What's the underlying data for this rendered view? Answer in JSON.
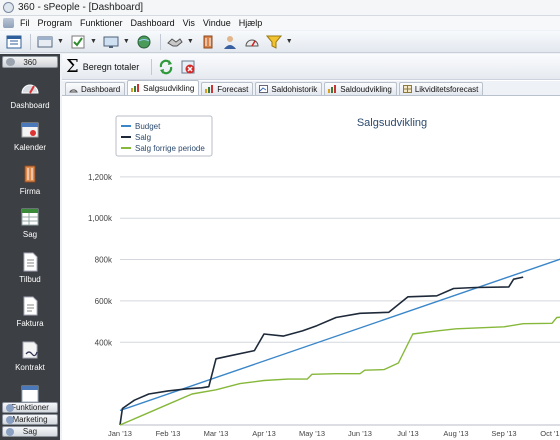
{
  "window": {
    "title": "360 - sPeople - [Dashboard]"
  },
  "menu": {
    "items": [
      "Fil",
      "Program",
      "Funktioner",
      "Dashboard",
      "Vis",
      "Vindue",
      "Hjælp"
    ]
  },
  "toolbar": {
    "icons": [
      "calendar-icon",
      "window-icon",
      "checklist-icon",
      "screen-icon",
      "globe-icon",
      "handshake-icon",
      "building-icon",
      "person-icon",
      "gauge-icon",
      "funnel-icon"
    ]
  },
  "sidebar": {
    "header": "360",
    "items": [
      {
        "label": "Dashboard",
        "icon": "dashboard-icon"
      },
      {
        "label": "Kalender",
        "icon": "calendar-icon"
      },
      {
        "label": "Firma",
        "icon": "building-icon"
      },
      {
        "label": "Sag",
        "icon": "folder-table-icon"
      },
      {
        "label": "Tilbud",
        "icon": "document-icon"
      },
      {
        "label": "Faktura",
        "icon": "invoice-icon"
      },
      {
        "label": "Kontrakt",
        "icon": "contract-icon"
      }
    ],
    "bottom": [
      "Funktioner",
      "Marketing",
      "Sag"
    ]
  },
  "subtoolbar": {
    "total_label": "Beregn totaler"
  },
  "tabs": [
    {
      "label": "Dashboard",
      "active": false
    },
    {
      "label": "Salgsudvikling",
      "active": true
    },
    {
      "label": "Forecast",
      "active": false
    },
    {
      "label": "Saldohistorik",
      "active": false
    },
    {
      "label": "Saldoudvikling",
      "active": false
    },
    {
      "label": "Likviditetsforecast",
      "active": false
    }
  ],
  "chart_data": {
    "type": "line",
    "title": "Salgsudvikling",
    "xlabel": "",
    "ylabel": "",
    "x_ticks": [
      "Jan '13",
      "Feb '13",
      "Mar '13",
      "Apr '13",
      "May '13",
      "Jun '13",
      "Jul '13",
      "Aug '13",
      "Sep '13",
      "Oct '13"
    ],
    "y_ticks": [
      "400k",
      "600k",
      "800k",
      "1,000k",
      "1,200k"
    ],
    "ylim": [
      0,
      1250000
    ],
    "xlim": [
      0,
      9.4
    ],
    "grid": true,
    "legend_position": "top-left",
    "series": [
      {
        "name": "Budget",
        "color": "#3a86c8",
        "points": [
          [
            0,
            70000
          ],
          [
            9.4,
            820000
          ]
        ]
      },
      {
        "name": "Salg",
        "color": "#1e2a3a",
        "points": [
          [
            0,
            0
          ],
          [
            0.05,
            80000
          ],
          [
            0.3,
            120000
          ],
          [
            0.6,
            150000
          ],
          [
            1.0,
            165000
          ],
          [
            1.4,
            175000
          ],
          [
            1.7,
            180000
          ],
          [
            1.85,
            185000
          ],
          [
            2.0,
            320000
          ],
          [
            2.3,
            335000
          ],
          [
            2.8,
            360000
          ],
          [
            3.0,
            440000
          ],
          [
            3.4,
            430000
          ],
          [
            3.8,
            455000
          ],
          [
            4.1,
            480000
          ],
          [
            4.5,
            520000
          ],
          [
            5.0,
            540000
          ],
          [
            5.6,
            545000
          ],
          [
            6.0,
            620000
          ],
          [
            6.6,
            625000
          ],
          [
            6.95,
            660000
          ],
          [
            7.4,
            665000
          ],
          [
            8.1,
            668000
          ],
          [
            8.2,
            705000
          ],
          [
            8.4,
            715000
          ]
        ]
      },
      {
        "name": "Salg forrige periode",
        "color": "#86b83a",
        "points": [
          [
            0,
            0
          ],
          [
            0.5,
            50000
          ],
          [
            1.0,
            100000
          ],
          [
            1.5,
            150000
          ],
          [
            2.0,
            170000
          ],
          [
            2.5,
            200000
          ],
          [
            3.0,
            215000
          ],
          [
            3.5,
            222000
          ],
          [
            3.9,
            222000
          ],
          [
            4.0,
            245000
          ],
          [
            4.5,
            248000
          ],
          [
            5.0,
            248000
          ],
          [
            5.1,
            265000
          ],
          [
            5.5,
            268000
          ],
          [
            5.8,
            300000
          ],
          [
            6.1,
            440000
          ],
          [
            6.6,
            455000
          ],
          [
            7.0,
            465000
          ],
          [
            7.5,
            470000
          ],
          [
            8.0,
            475000
          ],
          [
            8.4,
            490000
          ],
          [
            9.0,
            492000
          ],
          [
            9.1,
            520000
          ],
          [
            9.4,
            525000
          ]
        ]
      }
    ]
  },
  "colors": {
    "sidebar_bg": "#3c3f43",
    "accent": "#3a86c8"
  }
}
